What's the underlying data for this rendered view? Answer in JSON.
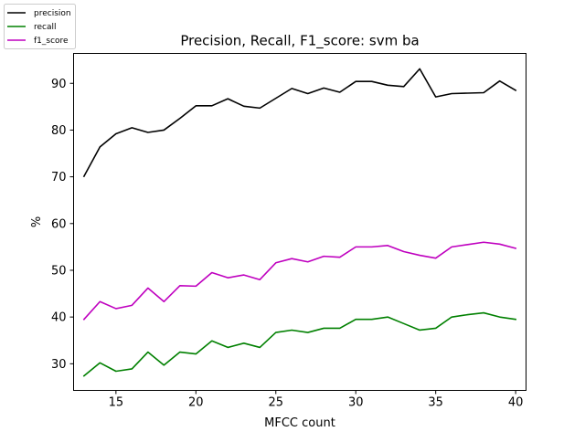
{
  "chart_data": {
    "type": "line",
    "title": "Precision, Recall, F1_score: svm ba",
    "xlabel": "MFCC count",
    "ylabel": "%",
    "xlim": [
      12.35,
      40.65
    ],
    "ylim": [
      24.3,
      96.4
    ],
    "x_ticks": [
      15,
      20,
      25,
      30,
      35,
      40
    ],
    "y_ticks": [
      30,
      40,
      50,
      60,
      70,
      80,
      90
    ],
    "grid": false,
    "legend_position": "top-left, outside axes",
    "x": [
      13,
      14,
      15,
      16,
      17,
      18,
      19,
      20,
      21,
      22,
      23,
      24,
      25,
      26,
      27,
      28,
      29,
      30,
      31,
      32,
      33,
      34,
      35,
      36,
      37,
      38,
      39,
      40
    ],
    "series": [
      {
        "name": "precision",
        "color": "#000000",
        "values": [
          70.1,
          76.4,
          79.2,
          80.5,
          79.5,
          80.0,
          82.5,
          85.2,
          85.2,
          86.7,
          85.1,
          84.7,
          86.8,
          88.9,
          87.8,
          89.0,
          88.1,
          90.4,
          90.4,
          89.6,
          89.3,
          93.1,
          87.1,
          87.8,
          87.9,
          88.0,
          90.5,
          88.5
        ]
      },
      {
        "name": "recall",
        "color": "#008000",
        "values": [
          27.4,
          30.2,
          28.4,
          28.9,
          32.5,
          29.7,
          32.5,
          32.1,
          34.9,
          33.5,
          34.4,
          33.5,
          36.7,
          37.2,
          36.7,
          37.6,
          37.6,
          39.5,
          39.5,
          40.0,
          38.6,
          37.2,
          37.6,
          40.0,
          40.5,
          40.9,
          40.0,
          39.5
        ]
      },
      {
        "name": "f1_score",
        "color": "#bf00bf",
        "values": [
          39.5,
          43.3,
          41.8,
          42.5,
          46.2,
          43.3,
          46.7,
          46.6,
          49.5,
          48.4,
          49.0,
          48.0,
          51.6,
          52.5,
          51.8,
          53.0,
          52.8,
          55.0,
          55.0,
          55.3,
          54.0,
          53.2,
          52.6,
          55.0,
          55.5,
          56.0,
          55.6,
          54.7
        ]
      }
    ]
  }
}
